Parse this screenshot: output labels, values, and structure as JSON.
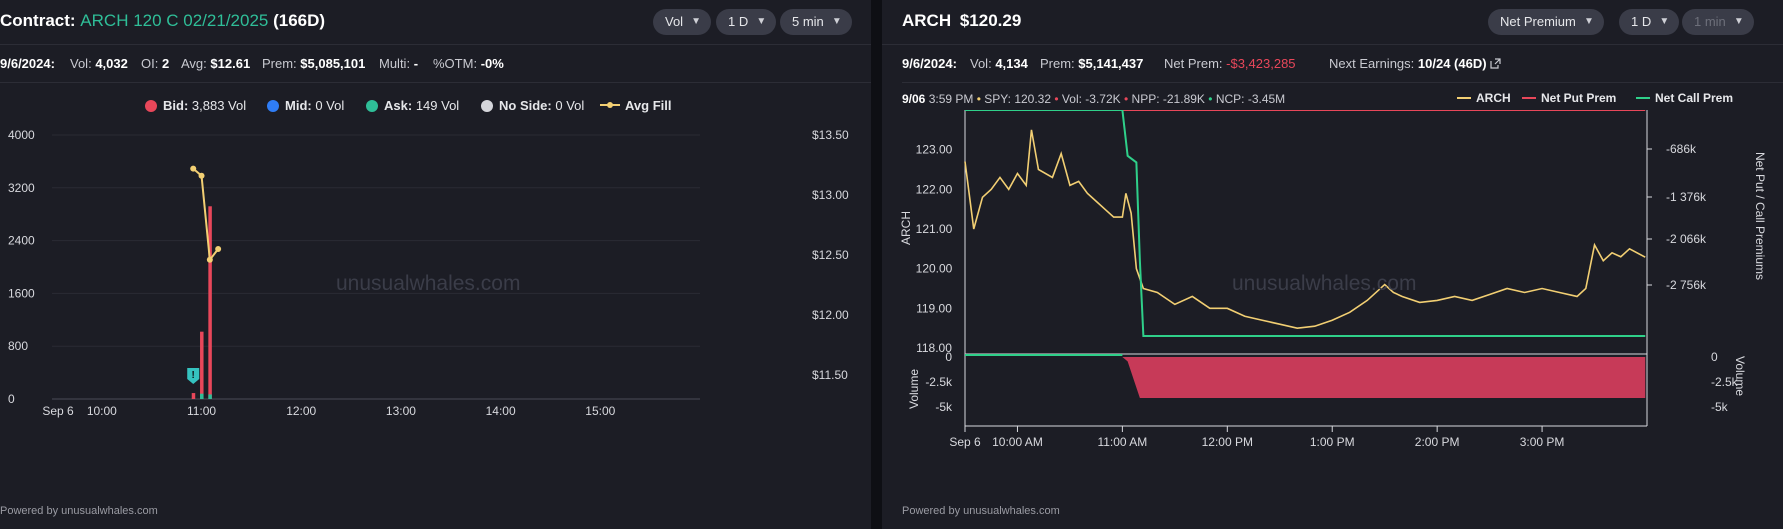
{
  "left": {
    "title_prefix": "Contract:",
    "contract": "ARCH 120 C 02/21/2025",
    "dte": "(166D)",
    "buttons": {
      "metric": "Vol",
      "range": "1 D",
      "interval": "5 min"
    },
    "stats": {
      "date": "9/6/2024:",
      "vol_label": "Vol:",
      "vol": "4,032",
      "oi_label": "OI:",
      "oi": "2",
      "avg_label": "Avg:",
      "avg": "$12.61",
      "prem_label": "Prem:",
      "prem": "$5,085,101",
      "multi_label": "Multi:",
      "multi": "-",
      "otm_label": "%OTM:",
      "otm": "-0%"
    },
    "legend": [
      {
        "label": "Bid:",
        "value": "3,883 Vol",
        "color": "#e8475a"
      },
      {
        "label": "Mid:",
        "value": "0 Vol",
        "color": "#2f7df6"
      },
      {
        "label": "Ask:",
        "value": "149 Vol",
        "color": "#2fbe98"
      },
      {
        "label": "No Side:",
        "value": "0 Vol",
        "color": "#d5d6db"
      },
      {
        "label": "Avg Fill",
        "value": "",
        "color": "#f2cf73"
      }
    ],
    "watermark": "unusualwhales.com",
    "footer": "Powered by unusualwhales.com",
    "chart_data": {
      "type": "bar",
      "x_ticks": [
        "Sep 6",
        "10:00",
        "11:00",
        "12:00",
        "13:00",
        "14:00",
        "15:00"
      ],
      "y_ticks": [
        "4000",
        "3200",
        "2400",
        "1600",
        "800",
        "0"
      ],
      "y2_ticks": [
        "$13.50",
        "$13.00",
        "$12.50",
        "$12.00",
        "$11.50"
      ],
      "ylim": [
        0,
        4000
      ],
      "y2lim": [
        11.3,
        13.5
      ],
      "series": [
        {
          "name": "Bid",
          "color": "#e8475a",
          "points": [
            [
              "10:55",
              90
            ],
            [
              "11:00",
              1020
            ],
            [
              "11:05",
              2920
            ]
          ]
        },
        {
          "name": "Ask",
          "color": "#2fbe98",
          "points": [
            [
              "11:00",
              80
            ],
            [
              "11:05",
              69
            ]
          ]
        }
      ],
      "avg_fill": {
        "name": "Avg Fill",
        "color": "#f2cf73",
        "points": [
          [
            "10:55",
            13.22
          ],
          [
            "11:00",
            13.16
          ],
          [
            "11:05",
            12.46
          ],
          [
            "11:10",
            12.55
          ]
        ]
      },
      "marker": {
        "time": "10:55",
        "symbol": "!"
      }
    }
  },
  "right": {
    "ticker": "ARCH",
    "price": "$120.29",
    "buttons": {
      "metric": "Net Premium",
      "range": "1 D",
      "interval": "1 min"
    },
    "stats": {
      "date": "9/6/2024:",
      "vol_label": "Vol:",
      "vol": "4,134",
      "prem_label": "Prem:",
      "prem": "$5,141,437",
      "netprem_label": "Net Prem:",
      "netprem": "-$3,423,285",
      "earn_label": "Next Earnings:",
      "earn": "10/24 (46D)"
    },
    "info": {
      "date": "9/06",
      "time": "3:59 PM",
      "spy_label": "SPY:",
      "spy": "120.32",
      "vol_label": "Vol:",
      "vol": "-3.72K",
      "npp_label": "NPP:",
      "npp": "-21.89K",
      "ncp_label": "NCP:",
      "ncp": "-3.45M"
    },
    "legend": [
      {
        "label": "ARCH",
        "color": "#f2cf73"
      },
      {
        "label": "Net Put Prem",
        "color": "#e8475a"
      },
      {
        "label": "Net Call Prem",
        "color": "#2fd08a"
      }
    ],
    "watermark": "unusualwhales.com",
    "footer": "Powered by unusualwhales.com",
    "chart_data": {
      "type": "line",
      "x_ticks": [
        "Sep 6",
        "10:00 AM",
        "11:00 AM",
        "12:00 PM",
        "1:00 PM",
        "2:00 PM",
        "3:00 PM"
      ],
      "y_ticks": [
        "123.00",
        "122.00",
        "121.00",
        "120.00",
        "119.00",
        "118.00"
      ],
      "ylim": [
        117.95,
        124.0
      ],
      "y_label": "ARCH",
      "y2_ticks": [
        "-686k",
        "-1 376k",
        "-2 066k",
        "-2 756k"
      ],
      "y2_label": "Net Put / Call Premiums",
      "volume_ticks": [
        "0",
        "-2.5k",
        "-5k"
      ],
      "volume_label": "Volume",
      "series": [
        {
          "name": "ARCH",
          "color": "#f2cf73",
          "points": [
            [
              "09:30",
              122.7
            ],
            [
              "09:35",
              121.0
            ],
            [
              "09:40",
              121.8
            ],
            [
              "09:45",
              122.0
            ],
            [
              "09:50",
              122.3
            ],
            [
              "09:55",
              122.0
            ],
            [
              "10:00",
              122.4
            ],
            [
              "10:05",
              122.1
            ],
            [
              "10:08",
              123.5
            ],
            [
              "10:12",
              122.5
            ],
            [
              "10:20",
              122.3
            ],
            [
              "10:25",
              122.9
            ],
            [
              "10:30",
              122.1
            ],
            [
              "10:35",
              122.2
            ],
            [
              "10:40",
              121.9
            ],
            [
              "10:45",
              121.7
            ],
            [
              "10:50",
              121.5
            ],
            [
              "10:55",
              121.3
            ],
            [
              "11:00",
              121.3
            ],
            [
              "11:02",
              121.9
            ],
            [
              "11:05",
              121.4
            ],
            [
              "11:08",
              120.0
            ],
            [
              "11:12",
              119.5
            ],
            [
              "11:20",
              119.4
            ],
            [
              "11:30",
              119.1
            ],
            [
              "11:40",
              119.3
            ],
            [
              "11:50",
              119.0
            ],
            [
              "12:00",
              119.0
            ],
            [
              "12:10",
              118.8
            ],
            [
              "12:20",
              118.7
            ],
            [
              "12:30",
              118.6
            ],
            [
              "12:40",
              118.5
            ],
            [
              "12:50",
              118.55
            ],
            [
              "13:00",
              118.7
            ],
            [
              "13:10",
              118.9
            ],
            [
              "13:20",
              119.2
            ],
            [
              "13:30",
              119.6
            ],
            [
              "13:35",
              119.4
            ],
            [
              "13:40",
              119.3
            ],
            [
              "13:50",
              119.15
            ],
            [
              "14:00",
              119.2
            ],
            [
              "14:10",
              119.3
            ],
            [
              "14:20",
              119.2
            ],
            [
              "14:30",
              119.35
            ],
            [
              "14:40",
              119.5
            ],
            [
              "14:50",
              119.4
            ],
            [
              "15:00",
              119.5
            ],
            [
              "15:10",
              119.4
            ],
            [
              "15:20",
              119.3
            ],
            [
              "15:25",
              119.5
            ],
            [
              "15:30",
              120.6
            ],
            [
              "15:35",
              120.2
            ],
            [
              "15:40",
              120.4
            ],
            [
              "15:45",
              120.3
            ],
            [
              "15:50",
              120.5
            ],
            [
              "15:59",
              120.29
            ]
          ]
        },
        {
          "name": "Net Put Prem",
          "color": "#e8475a",
          "points": [
            [
              "09:30",
              -21
            ],
            [
              "15:59",
              -22
            ]
          ]
        },
        {
          "name": "Net Call Prem",
          "color": "#2fd08a",
          "points": [
            [
              "09:30",
              0
            ],
            [
              "11:00",
              0
            ],
            [
              "11:03",
              -700
            ],
            [
              "11:08",
              -800
            ],
            [
              "11:10",
              -2300
            ],
            [
              "11:12",
              -3450
            ],
            [
              "15:59",
              -3450
            ]
          ]
        }
      ],
      "volume": {
        "color": "#c73a58",
        "points": [
          [
            "09:30",
            0
          ],
          [
            "11:00",
            0
          ],
          [
            "11:03",
            -400
          ],
          [
            "11:10",
            -3720
          ],
          [
            "15:59",
            -3720
          ]
        ]
      }
    }
  }
}
